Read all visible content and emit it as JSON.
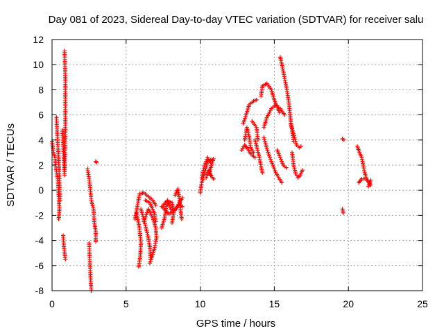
{
  "chart_data": {
    "type": "scatter",
    "title": "Day 081 of 2023, Sidereal Day-to-day VTEC variation (SDTVAR) for receiver salu",
    "xlabel": "GPS time / hours",
    "ylabel": "SDTVAR / TECUs",
    "xlim": [
      0,
      25
    ],
    "ylim": [
      -8,
      12
    ],
    "xticks": [
      0,
      5,
      10,
      15,
      20,
      25
    ],
    "yticks": [
      -8,
      -6,
      -4,
      -2,
      0,
      2,
      4,
      6,
      8,
      10,
      12
    ],
    "grid": true,
    "marker": "plus",
    "color": "#ff0000",
    "tracks": [
      [
        [
          0.0,
          3.9
        ],
        [
          0.1,
          3.0
        ],
        [
          0.2,
          2.6
        ],
        [
          0.3,
          1.5
        ],
        [
          0.4,
          0.8
        ],
        [
          0.45,
          -0.5
        ],
        [
          0.5,
          -1.5
        ],
        [
          0.45,
          -2.3
        ]
      ],
      [
        [
          0.3,
          5.8
        ],
        [
          0.35,
          4.5
        ],
        [
          0.45,
          2.5
        ],
        [
          0.5,
          0.5
        ],
        [
          0.55,
          -0.8
        ]
      ],
      [
        [
          0.7,
          4.8
        ],
        [
          0.8,
          2.5
        ],
        [
          0.85,
          1.2
        ]
      ],
      [
        [
          0.85,
          11.1
        ],
        [
          0.9,
          9.0
        ],
        [
          0.9,
          7.0
        ],
        [
          0.9,
          5.0
        ],
        [
          0.88,
          3.0
        ],
        [
          0.85,
          1.5
        ]
      ],
      [
        [
          0.75,
          -3.6
        ],
        [
          0.8,
          -4.5
        ],
        [
          0.9,
          -5.5
        ]
      ],
      [
        [
          2.4,
          1.7
        ],
        [
          2.55,
          0.5
        ],
        [
          2.65,
          -0.8
        ],
        [
          2.8,
          -1.5
        ],
        [
          2.85,
          -2.5
        ],
        [
          2.95,
          -3.3
        ],
        [
          2.95,
          -4.1
        ]
      ],
      [
        [
          2.95,
          2.3
        ],
        [
          3.0,
          2.2
        ]
      ],
      [
        [
          2.5,
          -4.2
        ],
        [
          2.55,
          -5.5
        ],
        [
          2.6,
          -7.0
        ],
        [
          2.65,
          -8.0
        ]
      ],
      [
        [
          5.6,
          -2.3
        ],
        [
          5.8,
          -1.0
        ],
        [
          5.9,
          -0.3
        ],
        [
          6.2,
          -0.2
        ],
        [
          6.5,
          -0.5
        ],
        [
          6.8,
          -0.8
        ],
        [
          7.0,
          -1.2
        ]
      ],
      [
        [
          5.7,
          -1.8
        ],
        [
          5.9,
          -3.0
        ],
        [
          6.0,
          -4.2
        ],
        [
          5.95,
          -5.3
        ],
        [
          5.85,
          -6.1
        ]
      ],
      [
        [
          6.0,
          -1.5
        ],
        [
          6.3,
          -2.8
        ],
        [
          6.5,
          -3.8
        ],
        [
          6.6,
          -4.5
        ],
        [
          6.65,
          -5.5
        ]
      ],
      [
        [
          6.2,
          -2.5
        ],
        [
          6.5,
          -1.5
        ],
        [
          6.8,
          -2.2
        ],
        [
          7.0,
          -3.0
        ],
        [
          7.05,
          -3.8
        ],
        [
          6.9,
          -4.7
        ],
        [
          6.6,
          -5.8
        ]
      ],
      [
        [
          6.3,
          -0.8
        ],
        [
          6.6,
          -1.0
        ],
        [
          6.9,
          -1.8
        ],
        [
          7.0,
          -2.5
        ]
      ],
      [
        [
          7.4,
          -3.0
        ],
        [
          7.6,
          -2.2
        ],
        [
          7.7,
          -1.3
        ],
        [
          7.9,
          -0.9
        ],
        [
          8.1,
          -1.0
        ],
        [
          8.2,
          -1.8
        ],
        [
          8.1,
          -2.6
        ]
      ],
      [
        [
          7.5,
          -1.2
        ],
        [
          7.8,
          -0.8
        ],
        [
          8.0,
          -1.5
        ],
        [
          8.3,
          -1.6
        ],
        [
          8.6,
          -1.1
        ],
        [
          8.8,
          -1.3
        ]
      ],
      [
        [
          8.3,
          -0.4
        ],
        [
          8.5,
          0.1
        ],
        [
          8.6,
          -0.8
        ],
        [
          8.7,
          -1.8
        ],
        [
          8.75,
          -2.3
        ]
      ],
      [
        [
          7.4,
          -1.3
        ],
        [
          7.9,
          -1.9
        ],
        [
          8.4,
          -1.4
        ],
        [
          8.8,
          -0.6
        ]
      ],
      [
        [
          10.0,
          -0.2
        ],
        [
          10.1,
          0.6
        ],
        [
          10.3,
          1.4
        ],
        [
          10.5,
          2.3
        ],
        [
          10.9,
          2.5
        ],
        [
          10.6,
          1.4
        ],
        [
          10.9,
          0.9
        ]
      ],
      [
        [
          10.1,
          1.0
        ],
        [
          10.3,
          2.0
        ],
        [
          10.5,
          2.6
        ],
        [
          10.7,
          2.2
        ]
      ],
      [
        [
          10.4,
          1.0
        ],
        [
          10.6,
          1.6
        ],
        [
          10.7,
          1.2
        ]
      ],
      [
        [
          12.8,
          3.2
        ],
        [
          13.0,
          3.6
        ],
        [
          13.2,
          3.3
        ],
        [
          13.4,
          2.9
        ],
        [
          13.7,
          2.6
        ]
      ],
      [
        [
          12.9,
          5.3
        ],
        [
          13.1,
          6.0
        ],
        [
          13.3,
          6.8
        ],
        [
          13.6,
          7.1
        ],
        [
          13.8,
          7.2
        ]
      ],
      [
        [
          13.0,
          4.0
        ],
        [
          13.15,
          5.0
        ],
        [
          13.3,
          4.3
        ],
        [
          13.4,
          3.4
        ],
        [
          13.6,
          3.0
        ]
      ],
      [
        [
          13.5,
          5.5
        ],
        [
          13.8,
          5.0
        ],
        [
          13.9,
          4.0
        ]
      ],
      [
        [
          13.7,
          4.0
        ],
        [
          13.85,
          3.3
        ],
        [
          14.0,
          2.6
        ],
        [
          14.1,
          1.9
        ],
        [
          14.2,
          1.4
        ]
      ],
      [
        [
          14.1,
          7.5
        ],
        [
          14.2,
          8.3
        ],
        [
          14.5,
          8.5
        ],
        [
          14.8,
          8.0
        ],
        [
          15.0,
          7.2
        ],
        [
          15.2,
          6.6
        ],
        [
          15.35,
          6.2
        ]
      ],
      [
        [
          14.3,
          5.0
        ],
        [
          14.5,
          5.8
        ],
        [
          14.8,
          6.5
        ],
        [
          15.1,
          6.8
        ],
        [
          15.4,
          6.5
        ],
        [
          15.7,
          6.0
        ]
      ],
      [
        [
          14.3,
          4.2
        ],
        [
          14.5,
          3.3
        ],
        [
          14.7,
          2.6
        ],
        [
          14.9,
          2.0
        ],
        [
          15.1,
          1.4
        ],
        [
          15.3,
          1.0
        ],
        [
          15.5,
          0.6
        ]
      ],
      [
        [
          15.4,
          10.6
        ],
        [
          15.55,
          9.8
        ],
        [
          15.7,
          8.9
        ],
        [
          15.85,
          8.0
        ],
        [
          16.0,
          6.8
        ],
        [
          16.1,
          5.6
        ],
        [
          16.2,
          4.8
        ],
        [
          16.3,
          3.9
        ]
      ],
      [
        [
          16.1,
          5.3
        ],
        [
          16.3,
          4.5
        ],
        [
          16.5,
          3.6
        ],
        [
          16.7,
          3.4
        ],
        [
          16.8,
          3.5
        ]
      ],
      [
        [
          15.2,
          3.2
        ],
        [
          15.4,
          2.6
        ],
        [
          15.6,
          2.0
        ],
        [
          15.8,
          1.8
        ]
      ],
      [
        [
          16.2,
          3.0
        ],
        [
          16.3,
          2.0
        ],
        [
          16.45,
          1.3
        ],
        [
          16.6,
          1.0
        ],
        [
          16.75,
          1.2
        ],
        [
          16.9,
          1.6
        ]
      ],
      [
        [
          19.6,
          4.1
        ],
        [
          19.7,
          4.0
        ]
      ],
      [
        [
          19.6,
          -1.5
        ],
        [
          19.65,
          -1.8
        ]
      ],
      [
        [
          20.6,
          3.5
        ],
        [
          20.75,
          3.0
        ],
        [
          20.9,
          2.6
        ],
        [
          21.0,
          2.0
        ],
        [
          21.1,
          1.4
        ],
        [
          21.2,
          1.0
        ]
      ],
      [
        [
          20.7,
          0.6
        ],
        [
          20.9,
          0.9
        ],
        [
          21.2,
          0.9
        ],
        [
          21.4,
          0.6
        ],
        [
          21.5,
          0.4
        ]
      ],
      [
        [
          21.35,
          0.3
        ],
        [
          21.5,
          0.8
        ]
      ]
    ]
  }
}
